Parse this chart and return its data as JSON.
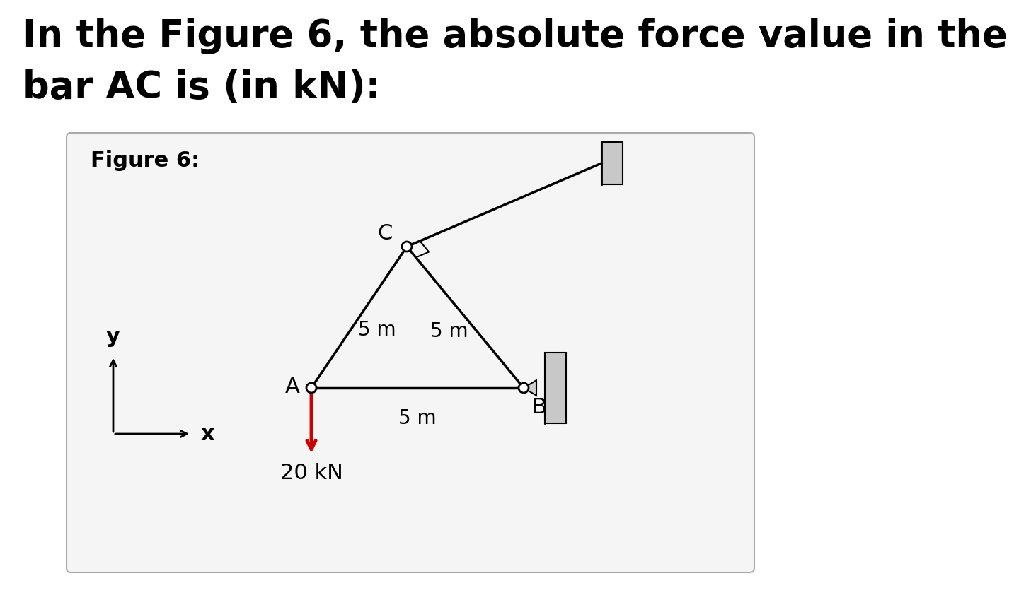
{
  "title_line1": "In the Figure 6, the absolute force value in the",
  "title_line2": "bar AC is (in kN):",
  "figure_label": "Figure 6:",
  "bg_color": "#ffffff",
  "box_bg_color": "#f5f5f5",
  "box_edge_color": "#aaaaaa",
  "text_color": "#000000",
  "wall_color": "#c8c8c8",
  "dim_AC": "5 m",
  "dim_BC": "5 m",
  "dim_AB": "5 m",
  "force_label": "20 kN",
  "axis_label_x": "x",
  "axis_label_y": "y",
  "line_color": "#000000",
  "force_color": "#cc0000",
  "node_color": "#ffffff",
  "node_edge_color": "#000000",
  "title_fontsize": 38,
  "fig_label_fontsize": 22
}
